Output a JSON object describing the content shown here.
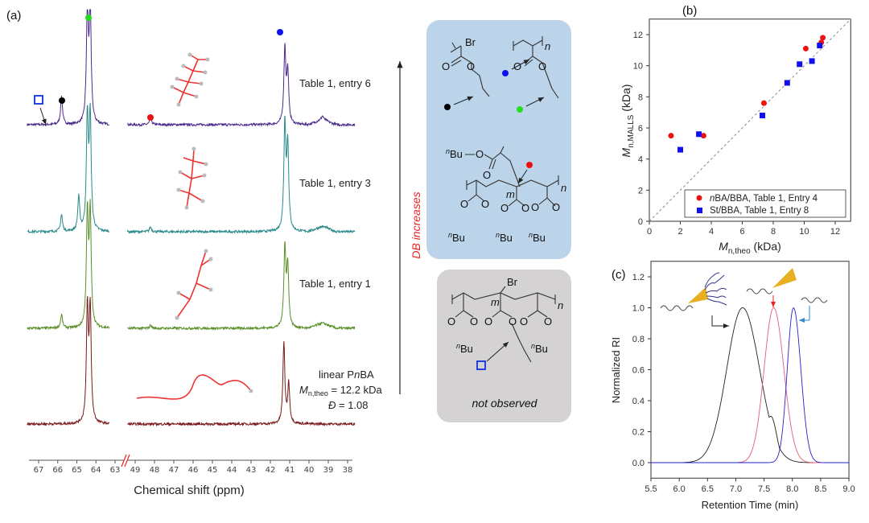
{
  "panel_labels": {
    "a": "(a)",
    "b": "(b)",
    "c": "(c)"
  },
  "nmr": {
    "xlabel": "Chemical shift (ppm)",
    "ticks_left": [
      "67",
      "66",
      "65",
      "64",
      "63"
    ],
    "ticks_right": [
      "49",
      "48",
      "47",
      "46",
      "45",
      "44",
      "43",
      "42",
      "41",
      "40",
      "39",
      "38"
    ],
    "spectra": [
      {
        "label": "Table 1, entry 6",
        "color": "#4b2a8c",
        "peaks": [
          [
            65.8,
            0.25
          ],
          [
            64.45,
            1.0
          ],
          [
            64.3,
            1.0
          ],
          [
            48.2,
            0.07
          ],
          [
            41.25,
            0.75
          ],
          [
            41.1,
            0.5
          ],
          [
            39.3,
            0.04
          ]
        ]
      },
      {
        "label": "Table 1, entry 3",
        "color": "#2a8a8a",
        "peaks": [
          [
            65.8,
            0.15
          ],
          [
            64.9,
            0.3
          ],
          [
            64.45,
            1.0
          ],
          [
            64.3,
            1.0
          ],
          [
            48.2,
            0.04
          ],
          [
            41.25,
            0.9
          ],
          [
            41.1,
            0.7
          ]
        ]
      },
      {
        "label": "Table 1, entry 1",
        "color": "#5a8f2a",
        "peaks": [
          [
            65.8,
            0.12
          ],
          [
            64.45,
            1.0
          ],
          [
            64.3,
            1.0
          ],
          [
            48.2,
            0.03
          ],
          [
            41.25,
            0.8
          ],
          [
            41.1,
            0.6
          ]
        ]
      },
      {
        "label_lines": [
          "linear PnBA",
          "Mn,theo = 12.2 kDa",
          "Đ = 1.08"
        ],
        "color": "#7a1a1a",
        "peaks": [
          [
            64.45,
            1.0
          ],
          [
            64.3,
            1.0
          ],
          [
            41.3,
            0.8
          ],
          [
            41.05,
            0.4
          ]
        ]
      }
    ],
    "linear_label": {
      "line1_pre": "linear P",
      "line1_it": "n",
      "line1_post": "BA",
      "m": "M",
      "sub": "n,theo",
      "mn_val": " = 12.2 kDa",
      "d": "Đ",
      "d_val": " = 1.08"
    },
    "marker_colors": {
      "green": "#22dd22",
      "blue": "#1010ee",
      "black": "#000000",
      "red": "#ee1111"
    }
  },
  "arrow_label": "DB increases",
  "structures": {
    "br": "Br",
    "o": "O",
    "n": "n",
    "m": "m",
    "nbu_sup": "n",
    "bu": "Bu",
    "not_observed": "not observed"
  },
  "chart_data": [
    {
      "type": "scatter",
      "panel": "b",
      "xlabel_main": "M",
      "xlabel_sub": "n,theo",
      "xlabel_unit": " (kDa)",
      "ylabel_main": "M",
      "ylabel_sub": "n,MALLS",
      "ylabel_unit": " (kDa)",
      "xlim": [
        0,
        13
      ],
      "ylim": [
        0,
        13
      ],
      "xticks": [
        "0",
        "2",
        "4",
        "6",
        "8",
        "10",
        "12"
      ],
      "yticks": [
        "0",
        "2",
        "4",
        "6",
        "8",
        "10",
        "12"
      ],
      "reference_line": "y = x (dashed)",
      "legend_position": "bottom-right",
      "series": [
        {
          "name": "nBA/BBA, Table 1, Entry 4",
          "name_it": "n",
          "name_rest": "BA/BBA, Table 1, Entry 4",
          "marker": "circle",
          "color": "#ee1111",
          "points": [
            [
              1.4,
              5.5
            ],
            [
              3.5,
              5.5
            ],
            [
              7.4,
              7.6
            ],
            [
              10.1,
              11.1
            ],
            [
              11.1,
              11.5
            ],
            [
              11.2,
              11.8
            ]
          ]
        },
        {
          "name": "St/BBA, Table 1, Entry 8",
          "name_it": "",
          "name_rest": "St/BBA, Table 1, Entry 8",
          "marker": "square",
          "color": "#1010ee",
          "points": [
            [
              2.0,
              4.6
            ],
            [
              3.2,
              5.6
            ],
            [
              7.3,
              6.8
            ],
            [
              8.9,
              8.9
            ],
            [
              9.7,
              10.1
            ],
            [
              10.5,
              10.3
            ],
            [
              11.0,
              11.3
            ]
          ]
        }
      ]
    },
    {
      "type": "line",
      "panel": "c",
      "xlabel": "Retention Time (min)",
      "ylabel": "Normalized RI",
      "xlim": [
        5.5,
        9.0
      ],
      "ylim": [
        -0.1,
        1.3
      ],
      "xticks": [
        "5.5",
        "6.0",
        "6.5",
        "7.0",
        "7.5",
        "8.0",
        "8.5",
        "9.0"
      ],
      "yticks": [
        "0.0",
        "0.2",
        "0.4",
        "0.6",
        "0.8",
        "1.0",
        "1.2"
      ],
      "series": [
        {
          "name": "star/brush polymer",
          "color": "#222222",
          "peak": 7.12,
          "sigma_left": 0.28,
          "sigma_right": 0.3,
          "shoulder": [
            7.62,
            0.3,
            0.1
          ]
        },
        {
          "name": "macroinitiator",
          "color": "#e06070",
          "peak": 7.67,
          "sigma_left": 0.17,
          "sigma_right": 0.18
        },
        {
          "name": "linear chain",
          "color": "#2222cc",
          "peak": 8.02,
          "sigma_left": 0.11,
          "sigma_right": 0.13
        }
      ]
    }
  ]
}
